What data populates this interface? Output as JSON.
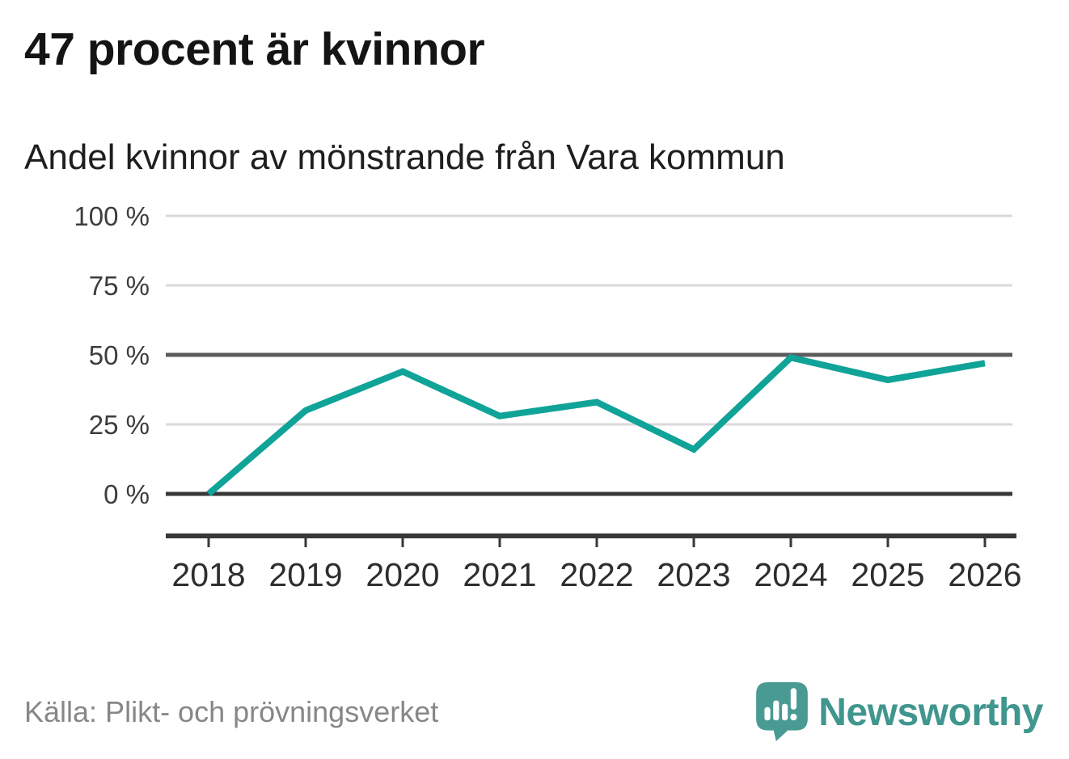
{
  "header": {
    "title": "47 procent är kvinnor",
    "subtitle": "Andel kvinnor av mönstrande från Vara kommun"
  },
  "chart_data": {
    "type": "line",
    "title": "47 procent är kvinnor",
    "subtitle": "Andel kvinnor av mönstrande från Vara kommun",
    "x": [
      2018,
      2019,
      2020,
      2021,
      2022,
      2023,
      2024,
      2025,
      2026
    ],
    "x_labels": [
      "2018",
      "2019",
      "2020",
      "2021",
      "2022",
      "2023",
      "2024",
      "2025",
      "2026"
    ],
    "series": [
      {
        "name": "Andel kvinnor",
        "values": [
          0,
          30,
          44,
          28,
          33,
          16,
          49,
          41,
          47
        ]
      }
    ],
    "unit": "%",
    "ylim": [
      0,
      100
    ],
    "yticks": [
      {
        "value": 0,
        "label": "0 %",
        "emphasis": "strong"
      },
      {
        "value": 25,
        "label": "25 %",
        "emphasis": "light"
      },
      {
        "value": 50,
        "label": "50 %",
        "emphasis": "medium"
      },
      {
        "value": 75,
        "label": "75 %",
        "emphasis": "light"
      },
      {
        "value": 100,
        "label": "100 %",
        "emphasis": "light"
      }
    ],
    "grid": "horizontal",
    "legend": "none",
    "colors": {
      "line": "#10a398",
      "grid_light": "#d9d9d9",
      "grid_medium": "#5c5c5c",
      "grid_strong": "#383838",
      "axis": "#383838",
      "tick_text": "#3d3d3d",
      "year_text": "#2e2e2e"
    }
  },
  "footer": {
    "source": "Källa: Plikt- och prövningsverket",
    "brand": "Newsworthy",
    "brand_colors": {
      "icon": "#4a9a94",
      "text": "#40968e"
    }
  }
}
